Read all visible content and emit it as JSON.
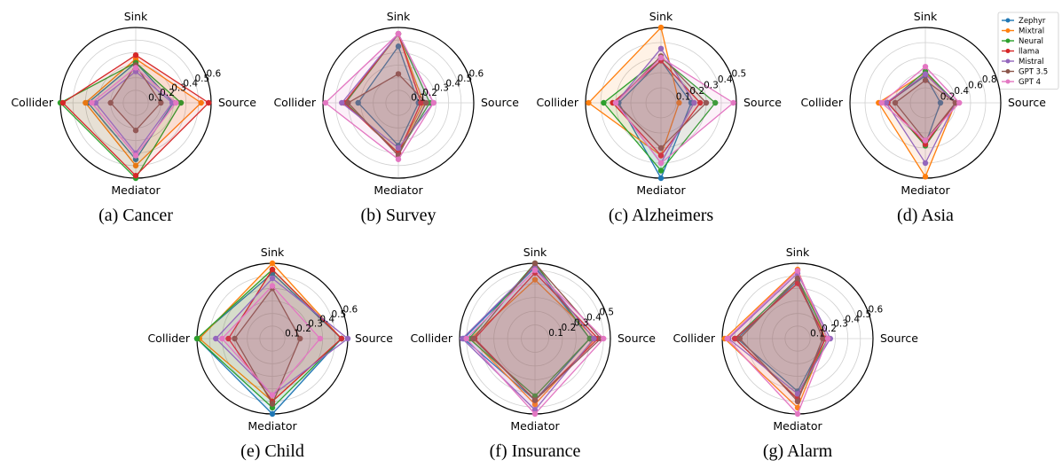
{
  "axes": [
    "Source",
    "Sink",
    "Collider",
    "Mediator"
  ],
  "legend": [
    {
      "name": "Zephyr",
      "color": "#1f77b4"
    },
    {
      "name": "Mixtral",
      "color": "#ff7f0e"
    },
    {
      "name": "Neural",
      "color": "#2ca02c"
    },
    {
      "name": "llama",
      "color": "#d62728"
    },
    {
      "name": "Mistral",
      "color": "#9467bd"
    },
    {
      "name": "GPT 3.5",
      "color": "#8c564b"
    },
    {
      "name": "GPT 4",
      "color": "#e377c2"
    }
  ],
  "chart_data": [
    {
      "type": "radar",
      "caption": "(a) Cancer",
      "rmax": 0.6,
      "ticks": [
        "0.1",
        "0.2",
        "0.3",
        "0.4",
        "0.5",
        "0.6"
      ],
      "series": [
        {
          "name": "Zephyr",
          "values": [
            0.3,
            0.32,
            0.38,
            0.45
          ]
        },
        {
          "name": "Mixtral",
          "values": [
            0.52,
            0.35,
            0.4,
            0.5
          ]
        },
        {
          "name": "Neural",
          "values": [
            0.36,
            0.32,
            0.6,
            0.6
          ]
        },
        {
          "name": "llama",
          "values": [
            0.58,
            0.38,
            0.58,
            0.58
          ]
        },
        {
          "name": "Mistral",
          "values": [
            0.29,
            0.25,
            0.32,
            0.4
          ]
        },
        {
          "name": "GPT 3.5",
          "values": [
            0.2,
            0.3,
            0.2,
            0.22
          ]
        },
        {
          "name": "GPT 4",
          "values": [
            0.32,
            0.28,
            0.35,
            0.42
          ]
        }
      ]
    },
    {
      "type": "radar",
      "caption": "(b) Survey",
      "rmax": 0.6,
      "ticks": [
        "0.1",
        "0.2",
        "0.3",
        "0.4",
        "0.5",
        "0.6"
      ],
      "series": [
        {
          "name": "Zephyr",
          "values": [
            0.16,
            0.45,
            0.32,
            0.34
          ]
        },
        {
          "name": "Mixtral",
          "values": [
            0.2,
            0.55,
            0.43,
            0.4
          ]
        },
        {
          "name": "Neural",
          "values": [
            0.25,
            0.55,
            0.42,
            0.4
          ]
        },
        {
          "name": "llama",
          "values": [
            0.18,
            0.55,
            0.43,
            0.4
          ]
        },
        {
          "name": "Mistral",
          "values": [
            0.28,
            0.55,
            0.45,
            0.36
          ]
        },
        {
          "name": "GPT 3.5",
          "values": [
            0.22,
            0.23,
            0.4,
            0.42
          ]
        },
        {
          "name": "GPT 4",
          "values": [
            0.28,
            0.55,
            0.58,
            0.45
          ]
        }
      ]
    },
    {
      "type": "radar",
      "caption": "(c) Alzheimers",
      "rmax": 0.5,
      "ticks": [
        "0.1",
        "0.2",
        "0.3",
        "0.4",
        "0.5"
      ],
      "series": [
        {
          "name": "Zephyr",
          "values": [
            0.2,
            0.28,
            0.28,
            0.5
          ]
        },
        {
          "name": "Mixtral",
          "values": [
            0.12,
            0.5,
            0.48,
            0.35
          ]
        },
        {
          "name": "Neural",
          "values": [
            0.36,
            0.3,
            0.38,
            0.45
          ]
        },
        {
          "name": "llama",
          "values": [
            0.26,
            0.28,
            0.32,
            0.35
          ]
        },
        {
          "name": "Mistral",
          "values": [
            0.22,
            0.36,
            0.3,
            0.4
          ]
        },
        {
          "name": "GPT 3.5",
          "values": [
            0.3,
            0.31,
            0.3,
            0.3
          ]
        },
        {
          "name": "GPT 4",
          "values": [
            0.48,
            0.3,
            0.3,
            0.4
          ]
        }
      ]
    },
    {
      "type": "radar",
      "caption": "(d) Asia",
      "rmax": 1.0,
      "ticks": [
        "0.2",
        "0.4",
        "0.6",
        "0.8"
      ],
      "series": [
        {
          "name": "Zephyr",
          "values": [
            0.2,
            0.36,
            0.5,
            0.55
          ]
        },
        {
          "name": "Mixtral",
          "values": [
            0.4,
            0.4,
            0.62,
            0.98
          ]
        },
        {
          "name": "Neural",
          "values": [
            0.4,
            0.42,
            0.5,
            0.57
          ]
        },
        {
          "name": "llama",
          "values": [
            0.4,
            0.38,
            0.5,
            0.55
          ]
        },
        {
          "name": "Mistral",
          "values": [
            0.4,
            0.38,
            0.52,
            0.8
          ]
        },
        {
          "name": "GPT 3.5",
          "values": [
            0.4,
            0.3,
            0.4,
            0.5
          ]
        },
        {
          "name": "GPT 4",
          "values": [
            0.45,
            0.48,
            0.58,
            0.5
          ]
        }
      ]
    },
    {
      "type": "radar",
      "caption": "(e) Child",
      "rmax": 0.6,
      "ticks": [
        "0.1",
        "0.2",
        "0.3",
        "0.4",
        "0.5",
        "0.6"
      ],
      "series": [
        {
          "name": "Zephyr",
          "values": [
            0.55,
            0.52,
            0.6,
            0.6
          ]
        },
        {
          "name": "Mixtral",
          "values": [
            0.55,
            0.6,
            0.58,
            0.5
          ]
        },
        {
          "name": "Neural",
          "values": [
            0.55,
            0.55,
            0.6,
            0.55
          ]
        },
        {
          "name": "llama",
          "values": [
            0.55,
            0.55,
            0.35,
            0.5
          ]
        },
        {
          "name": "Mistral",
          "values": [
            0.6,
            0.48,
            0.45,
            0.45
          ]
        },
        {
          "name": "GPT 3.5",
          "values": [
            0.22,
            0.4,
            0.3,
            0.52
          ]
        },
        {
          "name": "GPT 4",
          "values": [
            0.38,
            0.42,
            0.4,
            0.45
          ]
        }
      ]
    },
    {
      "type": "radar",
      "caption": "(f) Insurance",
      "rmax": 0.55,
      "ticks": [
        "0.1",
        "0.2",
        "0.3",
        "0.4",
        "0.5"
      ],
      "series": [
        {
          "name": "Zephyr",
          "values": [
            0.4,
            0.52,
            0.52,
            0.45
          ]
        },
        {
          "name": "Mixtral",
          "values": [
            0.44,
            0.43,
            0.47,
            0.48
          ]
        },
        {
          "name": "Neural",
          "values": [
            0.4,
            0.55,
            0.48,
            0.42
          ]
        },
        {
          "name": "llama",
          "values": [
            0.46,
            0.48,
            0.44,
            0.45
          ]
        },
        {
          "name": "Mistral",
          "values": [
            0.43,
            0.53,
            0.53,
            0.52
          ]
        },
        {
          "name": "GPT 3.5",
          "values": [
            0.48,
            0.55,
            0.45,
            0.45
          ]
        },
        {
          "name": "GPT 4",
          "values": [
            0.5,
            0.5,
            0.5,
            0.55
          ]
        }
      ]
    },
    {
      "type": "radar",
      "caption": "(g) Alarm",
      "rmax": 0.6,
      "ticks": [
        "0.1",
        "0.2",
        "0.3",
        "0.4",
        "0.5",
        "0.6"
      ],
      "series": [
        {
          "name": "Zephyr",
          "values": [
            0.22,
            0.46,
            0.48,
            0.42
          ]
        },
        {
          "name": "Mixtral",
          "values": [
            0.22,
            0.55,
            0.58,
            0.55
          ]
        },
        {
          "name": "Neural",
          "values": [
            0.24,
            0.48,
            0.5,
            0.48
          ]
        },
        {
          "name": "llama",
          "values": [
            0.22,
            0.44,
            0.5,
            0.48
          ]
        },
        {
          "name": "Mistral",
          "values": [
            0.26,
            0.52,
            0.55,
            0.44
          ]
        },
        {
          "name": "GPT 3.5",
          "values": [
            0.2,
            0.48,
            0.46,
            0.5
          ]
        },
        {
          "name": "GPT 4",
          "values": [
            0.24,
            0.54,
            0.56,
            0.6
          ]
        }
      ]
    }
  ]
}
